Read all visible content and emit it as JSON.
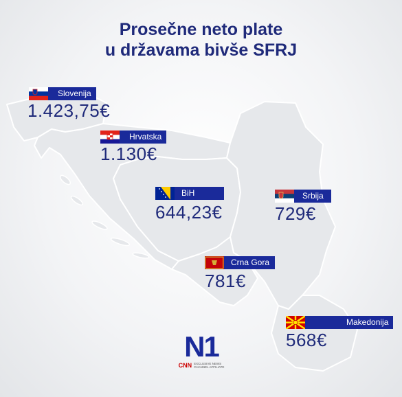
{
  "title": {
    "line1": "Prosečne neto plate",
    "line2": "u državama bivše SFRJ"
  },
  "colors": {
    "title": "#1f2a7a",
    "label_bg": "#1a2a9a",
    "map_fill": "#e6e8eb",
    "map_border": "#ffffff"
  },
  "countries": [
    {
      "id": "slovenia",
      "name": "Slovenija",
      "salary": "1.423,75€",
      "salary_value": 1423.75,
      "flag": "slovenia-flag-icon"
    },
    {
      "id": "croatia",
      "name": "Hrvatska",
      "salary": "1.130€",
      "salary_value": 1130,
      "flag": "croatia-flag-icon"
    },
    {
      "id": "bih",
      "name": "BiH",
      "salary": "644,23€",
      "salary_value": 644.23,
      "flag": "bih-flag-icon"
    },
    {
      "id": "serbia",
      "name": "Srbija",
      "salary": "729€",
      "salary_value": 729,
      "flag": "serbia-flag-icon"
    },
    {
      "id": "montenegro",
      "name": "Crna Gora",
      "salary": "781€",
      "salary_value": 781,
      "flag": "montenegro-flag-icon"
    },
    {
      "id": "macedonia",
      "name": "Makedonija",
      "salary": "568€",
      "salary_value": 568,
      "flag": "macedonia-flag-icon"
    }
  ],
  "logo": {
    "brand": "N1",
    "partner": "CNN",
    "affiliate_line1": "EXCLUSIVE NEWS",
    "affiliate_line2": "CHANNEL AFFILIATE"
  }
}
